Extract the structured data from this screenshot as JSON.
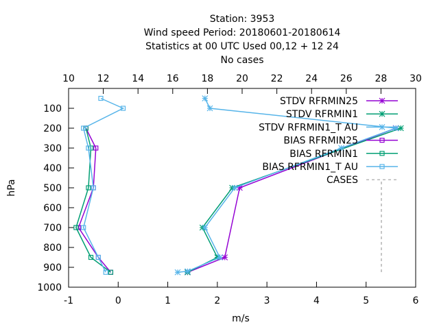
{
  "header": {
    "line1": "Station:      3953",
    "line2": "Wind speed  Period: 20180601-20180614",
    "line3": "Statistics at 00 UTC  Used  00,12  + 12 24",
    "line4": "No cases"
  },
  "axes": {
    "xlabel": "m/s",
    "ylabel": "hPa",
    "bottom_ticks": [
      "-1",
      "0",
      "1",
      "2",
      "3",
      "4",
      "5",
      "6"
    ],
    "top_ticks": [
      "10",
      "12",
      "14",
      "16",
      "18",
      "20",
      "22",
      "24",
      "26",
      "28",
      "30"
    ],
    "left_ticks": [
      "100",
      "200",
      "300",
      "400",
      "500",
      "600",
      "700",
      "800",
      "900",
      "1000"
    ]
  },
  "chart_data": {
    "type": "line",
    "title": "Station: 3953 — Wind speed Period: 20180601-20180614 — Statistics at 00 UTC Used 00,12 + 12 24 — No cases",
    "xlabel": "m/s",
    "ylabel": "hPa",
    "xlim": [
      -1,
      6
    ],
    "x2lim": [
      10,
      30
    ],
    "ylim": [
      1000,
      0
    ],
    "y_scale": "linear, inverted",
    "grid": false,
    "legend_position": "top-right",
    "series": [
      {
        "name": "STDV RFRMIN25",
        "marker": "x-star",
        "color": "#9400d3",
        "points": [
          [
            1.4,
            925
          ],
          [
            2.15,
            850
          ],
          [
            2.45,
            500
          ],
          [
            5.6,
            200
          ],
          [
            5.6,
            200
          ]
        ]
      },
      {
        "name": "STDV RFRMIN1",
        "marker": "x-star",
        "color": "#009e73",
        "points": [
          [
            1.4,
            925
          ],
          [
            2.0,
            850
          ],
          [
            1.7,
            700
          ],
          [
            2.3,
            500
          ],
          [
            5.7,
            200
          ]
        ]
      },
      {
        "name": "STDV RFRMIN1_T AU",
        "marker": "x-star",
        "color": "#56b4e9",
        "points": [
          [
            1.2,
            925
          ],
          [
            1.4,
            920
          ],
          [
            2.05,
            850
          ],
          [
            1.75,
            700
          ],
          [
            2.35,
            500
          ],
          [
            4.5,
            300
          ],
          [
            5.6,
            200
          ],
          [
            1.85,
            100
          ],
          [
            1.75,
            50
          ]
        ]
      },
      {
        "name": "BIAS RFRMIN25",
        "marker": "square",
        "color": "#9400d3",
        "points": [
          [
            -0.15,
            925
          ],
          [
            -0.4,
            850
          ],
          [
            -0.8,
            700
          ],
          [
            -0.5,
            500
          ],
          [
            -0.45,
            300
          ],
          [
            -0.65,
            200
          ]
        ]
      },
      {
        "name": "BIAS RFRMIN1",
        "marker": "square",
        "color": "#009e73",
        "points": [
          [
            -0.15,
            925
          ],
          [
            -0.55,
            850
          ],
          [
            -0.85,
            700
          ],
          [
            -0.6,
            500
          ],
          [
            -0.55,
            300
          ],
          [
            -0.65,
            200
          ]
        ]
      },
      {
        "name": "BIAS RFRMIN1_T AU",
        "marker": "square",
        "color": "#56b4e9",
        "points": [
          [
            -0.25,
            925
          ],
          [
            -0.4,
            850
          ],
          [
            -0.7,
            700
          ],
          [
            -0.5,
            500
          ],
          [
            -0.6,
            300
          ],
          [
            -0.7,
            200
          ],
          [
            0.1,
            100
          ],
          [
            -0.35,
            50
          ]
        ]
      },
      {
        "name": "CASES",
        "marker": "none",
        "color": "#a0a0a0",
        "dash": "dashed",
        "points": []
      }
    ],
    "legend": [
      {
        "label": "STDV RFRMIN25",
        "color": "#9400d3",
        "marker": "x-star"
      },
      {
        "label": "STDV RFRMIN1",
        "color": "#009e73",
        "marker": "x-star"
      },
      {
        "label": "STDV RFRMIN1_T AU",
        "color": "#56b4e9",
        "marker": "x-star"
      },
      {
        "label": "BIAS RFRMIN25",
        "color": "#9400d3",
        "marker": "square"
      },
      {
        "label": "BIAS RFRMIN1",
        "color": "#009e73",
        "marker": "square"
      },
      {
        "label": "BIAS RFRMIN1_T AU",
        "color": "#56b4e9",
        "marker": "square"
      },
      {
        "label": "CASES",
        "color": "#a0a0a0",
        "marker": "dashed"
      }
    ]
  }
}
